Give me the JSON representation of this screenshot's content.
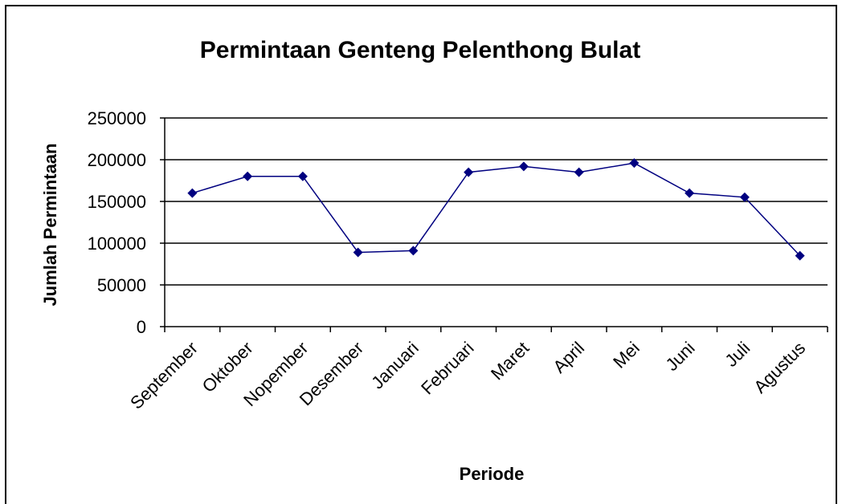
{
  "chart_data": {
    "type": "line",
    "title": "Permintaan Genteng Pelenthong Bulat",
    "x_label": "Periode",
    "y_label": "Jumlah Permintaan",
    "categories": [
      "September",
      "Oktober",
      "Nopember",
      "Desember",
      "Januari",
      "Februari",
      "Maret",
      "April",
      "Mei",
      "Juni",
      "Juli",
      "Agustus"
    ],
    "series": [
      {
        "name": "Permintaan",
        "color": "#000080",
        "values": [
          160000,
          180000,
          180000,
          89000,
          91000,
          185000,
          192000,
          185000,
          196000,
          160000,
          155000,
          85000
        ]
      }
    ],
    "ylim": [
      0,
      250000
    ],
    "yticks": [
      0,
      50000,
      100000,
      150000,
      200000,
      250000
    ],
    "grid": true
  }
}
